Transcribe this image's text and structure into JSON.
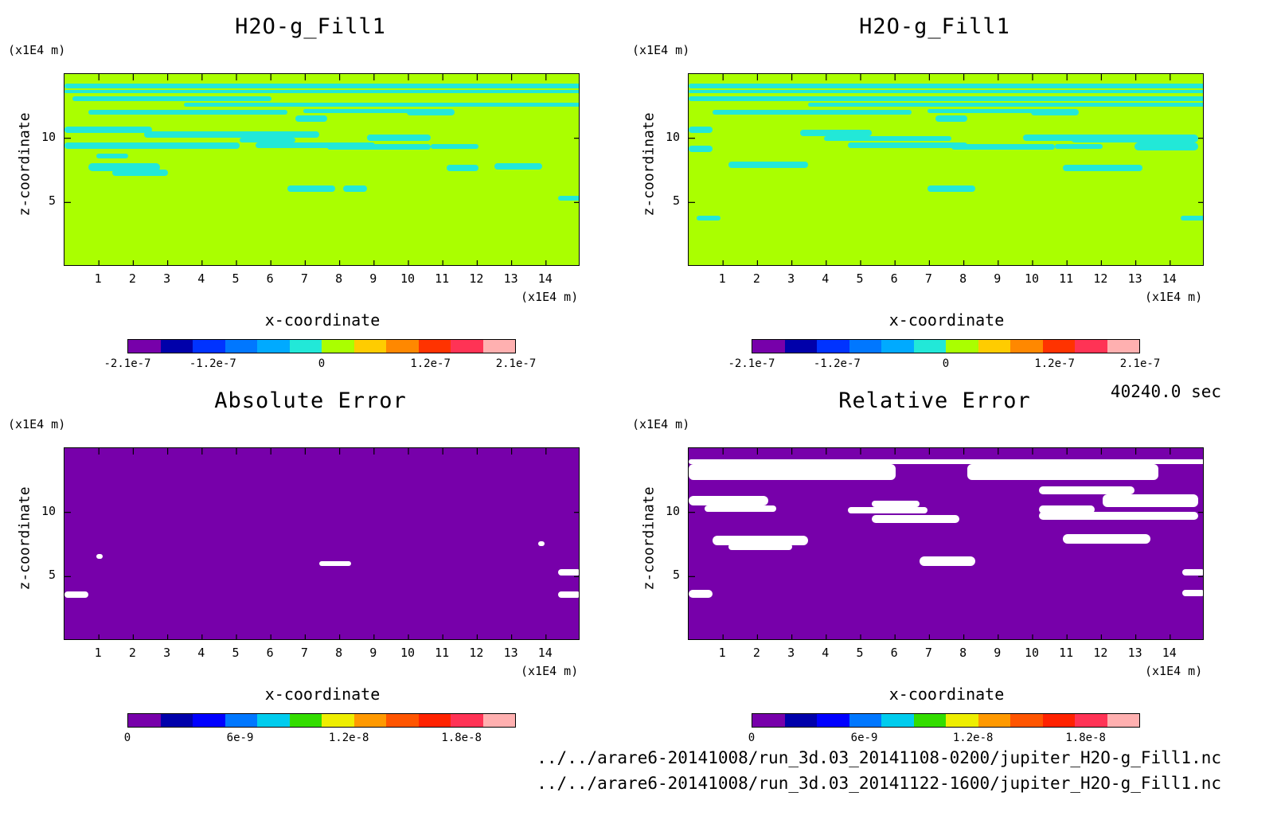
{
  "chart_data": [
    {
      "type": "heatmap",
      "title": "H2O-g_Fill1",
      "xlabel": "x-coordinate",
      "ylabel": "z-coordinate",
      "x_unit": "(x1E4 m)",
      "y_unit": "(x1E4 m)",
      "x_ticks": [
        "1",
        "2",
        "3",
        "4",
        "5",
        "6",
        "7",
        "8",
        "9",
        "10",
        "11",
        "12",
        "13",
        "14"
      ],
      "y_ticks": [
        "5",
        "10"
      ],
      "xlim": [
        0,
        15
      ],
      "ylim": [
        0,
        15
      ],
      "background_color": "#aaff00",
      "feature_color": "#22e8d8",
      "colorbar": {
        "colors": [
          "#7700aa",
          "#0000aa",
          "#0033ff",
          "#0077ff",
          "#00aaff",
          "#22e8d8",
          "#aaff00",
          "#ffcc00",
          "#ff8800",
          "#ff3300",
          "#ff3355",
          "#ffb0b0"
        ],
        "labels": [
          "-2.1e-7",
          "-1.2e-7",
          "0",
          "1.2e-7",
          "2.1e-7"
        ]
      }
    },
    {
      "type": "heatmap",
      "title": "H2O-g_Fill1",
      "xlabel": "x-coordinate",
      "ylabel": "z-coordinate",
      "x_unit": "(x1E4 m)",
      "y_unit": "(x1E4 m)",
      "x_ticks": [
        "1",
        "2",
        "3",
        "4",
        "5",
        "6",
        "7",
        "8",
        "9",
        "10",
        "11",
        "12",
        "13",
        "14"
      ],
      "y_ticks": [
        "5",
        "10"
      ],
      "xlim": [
        0,
        15
      ],
      "ylim": [
        0,
        15
      ],
      "background_color": "#aaff00",
      "feature_color": "#22e8d8",
      "colorbar": {
        "colors": [
          "#7700aa",
          "#0000aa",
          "#0033ff",
          "#0077ff",
          "#00aaff",
          "#22e8d8",
          "#aaff00",
          "#ffcc00",
          "#ff8800",
          "#ff3300",
          "#ff3355",
          "#ffb0b0"
        ],
        "labels": [
          "-2.1e-7",
          "-1.2e-7",
          "0",
          "1.2e-7",
          "2.1e-7"
        ]
      }
    },
    {
      "type": "heatmap",
      "title": "Absolute Error",
      "xlabel": "x-coordinate",
      "ylabel": "z-coordinate",
      "x_unit": "(x1E4 m)",
      "y_unit": "(x1E4 m)",
      "x_ticks": [
        "1",
        "2",
        "3",
        "4",
        "5",
        "6",
        "7",
        "8",
        "9",
        "10",
        "11",
        "12",
        "13",
        "14"
      ],
      "y_ticks": [
        "5",
        "10"
      ],
      "xlim": [
        0,
        15
      ],
      "ylim": [
        0,
        15
      ],
      "background_color": "#7700aa",
      "feature_color": "#ffffff",
      "colorbar": {
        "colors": [
          "#7700aa",
          "#0000aa",
          "#0000ff",
          "#0077ff",
          "#00ccee",
          "#33dd00",
          "#eeee00",
          "#ff9900",
          "#ff5500",
          "#ff2200",
          "#ff3355",
          "#ffb0b0"
        ],
        "labels": [
          "0",
          "6e-9",
          "1.2e-8",
          "1.8e-8"
        ]
      }
    },
    {
      "type": "heatmap",
      "title": "Relative Error",
      "xlabel": "x-coordinate",
      "ylabel": "z-coordinate",
      "x_unit": "(x1E4 m)",
      "y_unit": "(x1E4 m)",
      "x_ticks": [
        "1",
        "2",
        "3",
        "4",
        "5",
        "6",
        "7",
        "8",
        "9",
        "10",
        "11",
        "12",
        "13",
        "14"
      ],
      "y_ticks": [
        "5",
        "10"
      ],
      "xlim": [
        0,
        15
      ],
      "ylim": [
        0,
        15
      ],
      "background_color": "#7700aa",
      "feature_color": "#ffffff",
      "colorbar": {
        "colors": [
          "#7700aa",
          "#0000aa",
          "#0000ff",
          "#0077ff",
          "#00ccee",
          "#33dd00",
          "#eeee00",
          "#ff9900",
          "#ff5500",
          "#ff2200",
          "#ff3355",
          "#ffb0b0"
        ],
        "labels": [
          "0",
          "6e-9",
          "1.2e-8",
          "1.8e-8"
        ]
      }
    }
  ],
  "time_stamp": "40240.0 sec",
  "files": [
    "../../arare6-20141008/run_3d.03_20141108-0200/jupiter_H2O-g_Fill1.nc",
    "../../arare6-20141008/run_3d.03_20141122-1600/jupiter_H2O-g_Fill1.nc"
  ]
}
